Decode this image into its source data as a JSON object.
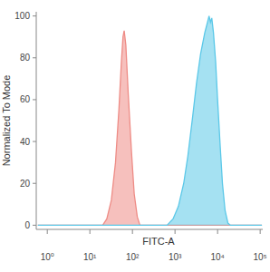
{
  "chart_data": {
    "type": "area",
    "x_label": "FITC-A",
    "y_label": "Normalized To Mode",
    "log": "x",
    "xlim": [
      0.55,
      115000
    ],
    "ylim": [
      -2,
      102
    ],
    "xticks": [
      {
        "value": 1,
        "label": "10⁰"
      },
      {
        "value": 10,
        "label": "10¹"
      },
      {
        "value": 100,
        "label": "10²"
      },
      {
        "value": 1000,
        "label": "10³"
      },
      {
        "value": 10000,
        "label": "10⁴"
      },
      {
        "value": 100000,
        "label": "10⁵"
      }
    ],
    "yticks": [
      0,
      20,
      40,
      60,
      80,
      100
    ],
    "series": [
      {
        "color": "#ee8c86",
        "x": [
          0.6,
          20,
          25,
          32,
          40,
          48,
          55,
          60,
          64,
          70,
          80,
          95,
          110,
          130,
          150,
          110000
        ],
        "values": [
          0,
          0,
          3,
          12,
          30,
          55,
          78,
          90,
          93,
          86,
          62,
          35,
          15,
          4,
          0,
          0
        ]
      },
      {
        "color": "#5bc8e8",
        "x": [
          0.6,
          650,
          900,
          1200,
          1600,
          2000,
          2600,
          3200,
          4000,
          5000,
          5800,
          6300,
          6800,
          7300,
          8000,
          9000,
          10000,
          11500,
          13000,
          15000,
          17500,
          20000,
          110000
        ],
        "values": [
          0,
          0,
          3,
          9,
          20,
          33,
          52,
          68,
          82,
          92,
          97,
          100,
          97,
          99,
          92,
          78,
          60,
          38,
          20,
          7,
          1,
          0,
          0
        ]
      }
    ]
  }
}
